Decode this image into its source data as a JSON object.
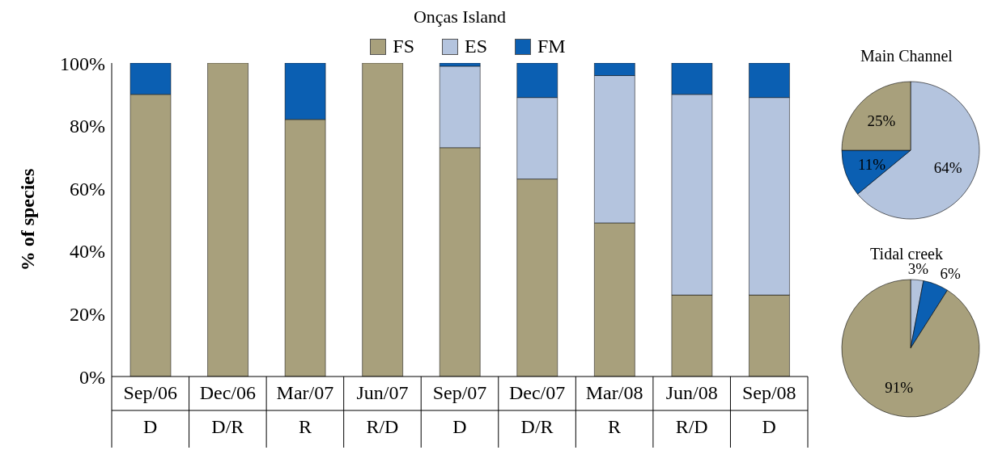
{
  "chart_data": [
    {
      "type": "bar",
      "title": "Onças Island",
      "ylabel": "% of species",
      "stacked": true,
      "legend": "top",
      "categories": [
        "Sep/06\nD",
        "Dec/06\nD/R",
        "Mar/07\nR",
        "Jun/07\nR/D",
        "Sep/07\nD",
        "Dec/07\nD/R",
        "Mar/08\nR",
        "Jun/08\nR/D",
        "Sep/08\nD"
      ],
      "series": [
        {
          "name": "FS",
          "color": "#a8a07c",
          "values": [
            90,
            100,
            82,
            100,
            73,
            63,
            49,
            26,
            26
          ]
        },
        {
          "name": "ES",
          "color": "#b4c4de",
          "values": [
            0,
            0,
            0,
            0,
            26,
            26,
            47,
            64,
            63
          ]
        },
        {
          "name": "FM",
          "color": "#0b5fb2",
          "values": [
            10,
            0,
            18,
            0,
            1,
            11,
            4,
            10,
            11
          ]
        }
      ],
      "ylim": [
        0,
        100
      ],
      "yticks": [
        {
          "value": 0,
          "label": "0%"
        },
        {
          "value": 20,
          "label": "20%"
        },
        {
          "value": 40,
          "label": "40%"
        },
        {
          "value": 60,
          "label": "60%"
        },
        {
          "value": 80,
          "label": "80%"
        },
        {
          "value": 100,
          "label": "100%"
        }
      ]
    },
    {
      "type": "pie",
      "title": "Main Channel",
      "categories": [
        null,
        null,
        null
      ],
      "values": [
        64,
        11,
        25
      ],
      "colors": [
        "#b4c4de",
        "#0b5fb2",
        "#a8a07c"
      ],
      "value_labels": [
        "64%",
        "11%",
        "25%"
      ]
    },
    {
      "type": "pie",
      "title": "Tidal creek",
      "categories": [
        null,
        null,
        null
      ],
      "values": [
        3,
        6,
        91
      ],
      "colors": [
        "#b4c4de",
        "#0b5fb2",
        "#a8a07c"
      ],
      "value_labels": [
        "3%",
        "6%",
        "91%"
      ]
    }
  ]
}
